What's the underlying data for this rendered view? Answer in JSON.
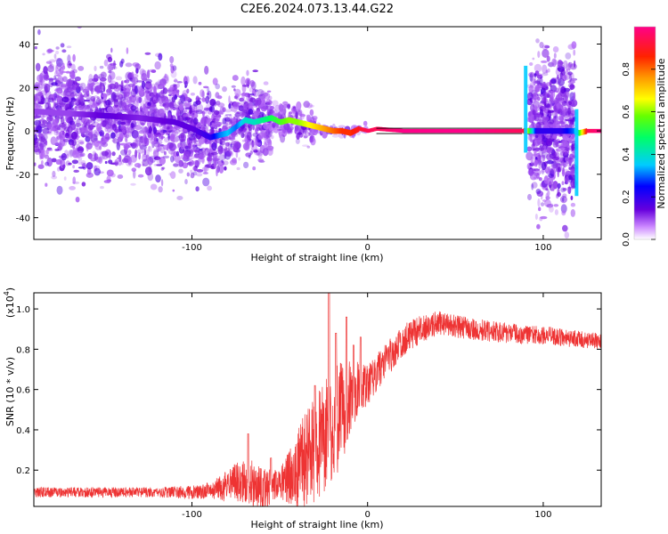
{
  "title": "C2E6.2024.073.13.44.G22",
  "colors": {
    "snr_line": "#ee3333",
    "spectrum_low": "#cc99ff",
    "spectrum_mid": "#5511dd",
    "spectrum_high": "#ee3355"
  },
  "chart_data": [
    {
      "type": "heatmap",
      "title": "C2E6.2024.073.13.44.G22",
      "xlabel": "Height of straight line (km)",
      "ylabel": "Frequency (Hz)",
      "xlim": [
        -190,
        133
      ],
      "ylim": [
        -50,
        48
      ],
      "x_ticks": [
        -100,
        0,
        100
      ],
      "x_tick_labels": [
        "-100",
        "0",
        "100"
      ],
      "y_ticks": [
        -40,
        -20,
        0,
        20,
        40
      ],
      "y_tick_labels": [
        "-40",
        "-20",
        "0",
        "20",
        "40"
      ],
      "colorbar": {
        "label": "Normalized spectral amplitude",
        "range": [
          0,
          1
        ],
        "ticks": [
          0.0,
          0.2,
          0.4,
          0.6,
          0.8
        ],
        "tick_labels": [
          "0.0",
          "0.2",
          "0.4",
          "0.6",
          "0.8"
        ],
        "colormap": "rainbow"
      },
      "ridge": {
        "x": [
          -190,
          -170,
          -150,
          -130,
          -110,
          -100,
          -90,
          -85,
          -80,
          -75,
          -70,
          -65,
          -60,
          -55,
          -50,
          -45,
          -40,
          -35,
          -30,
          -25,
          -20,
          -15,
          -10,
          -5,
          0,
          5,
          20,
          60,
          88,
          92,
          96,
          100,
          110,
          117,
          120,
          125,
          133
        ],
        "y": [
          9,
          8,
          7,
          6,
          4,
          1,
          -3,
          -2,
          -1,
          2,
          5,
          4,
          5,
          6,
          4,
          5,
          4,
          3,
          2,
          1,
          0,
          0,
          -1,
          1,
          0,
          1,
          0,
          0,
          0,
          0,
          0,
          0,
          0,
          0,
          -1,
          0,
          0
        ],
        "amplitude": [
          0.1,
          0.1,
          0.15,
          0.12,
          0.15,
          0.15,
          0.2,
          0.3,
          0.35,
          0.3,
          0.4,
          0.4,
          0.45,
          0.5,
          0.55,
          0.6,
          0.6,
          0.65,
          0.7,
          0.75,
          0.8,
          0.85,
          0.85,
          0.9,
          0.95,
          0.95,
          1,
          1,
          0.95,
          0.5,
          0.2,
          0.2,
          0.2,
          0.3,
          0.5,
          0.95,
          1
        ]
      }
    },
    {
      "type": "line",
      "xlabel": "Height of straight line (km)",
      "ylabel": "SNR (10 * v/v)",
      "exponent_label": "(x10",
      "exponent_power": "4",
      "exponent_close": ")",
      "xlim": [
        -190,
        133
      ],
      "ylim": [
        0.02,
        1.08
      ],
      "x_ticks": [
        -100,
        0,
        100
      ],
      "x_tick_labels": [
        "-100",
        "0",
        "100"
      ],
      "y_ticks": [
        0.2,
        0.4,
        0.6,
        0.8,
        1.0
      ],
      "y_tick_labels": [
        "0.2",
        "0.4",
        "0.6",
        "0.8",
        "1.0"
      ],
      "envelope": {
        "x": [
          -190,
          -150,
          -120,
          -100,
          -90,
          -80,
          -70,
          -60,
          -50,
          -40,
          -30,
          -20,
          -10,
          0,
          10,
          20,
          30,
          40,
          60,
          80,
          100,
          110,
          120,
          133
        ],
        "y": [
          0.09,
          0.09,
          0.09,
          0.09,
          0.1,
          0.12,
          0.15,
          0.1,
          0.12,
          0.2,
          0.3,
          0.42,
          0.55,
          0.62,
          0.74,
          0.84,
          0.9,
          0.93,
          0.9,
          0.88,
          0.87,
          0.86,
          0.85,
          0.84
        ]
      },
      "noise": {
        "x": [
          -190,
          -120,
          -90,
          -75,
          -65,
          -50,
          -35,
          -20,
          -10,
          0,
          20,
          40,
          80,
          133
        ],
        "y": [
          0.025,
          0.025,
          0.04,
          0.1,
          0.12,
          0.08,
          0.25,
          0.3,
          0.2,
          0.1,
          0.08,
          0.06,
          0.05,
          0.04
        ]
      },
      "spikes": [
        {
          "x": -68,
          "y": 0.38
        },
        {
          "x": -55,
          "y": 0.26
        },
        {
          "x": -30,
          "y": 0.62
        },
        {
          "x": -22,
          "y": 1.08
        },
        {
          "x": -18,
          "y": 0.88
        },
        {
          "x": -12,
          "y": 0.96
        },
        {
          "x": -8,
          "y": 0.82
        },
        {
          "x": -4,
          "y": 0.86
        }
      ]
    }
  ]
}
